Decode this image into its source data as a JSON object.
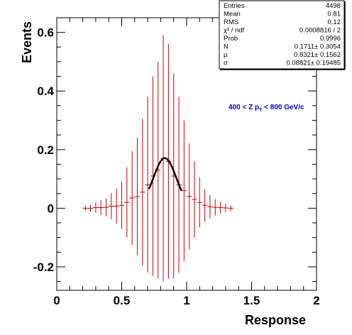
{
  "chart_data": {
    "type": "scatter",
    "xlabel": "Response",
    "ylabel": "Events",
    "xlim": [
      0,
      2
    ],
    "ylim": [
      -0.28,
      0.65
    ],
    "xticks": [
      0,
      0.5,
      1,
      1.5,
      2
    ],
    "xtick_labels": [
      "0",
      "0.5",
      "1",
      "1.5",
      "2"
    ],
    "yticks": [
      -0.2,
      0,
      0.2,
      0.4,
      0.6
    ],
    "ytick_labels": [
      "-0.2",
      "0",
      "0.2",
      "0.4",
      "0.6"
    ],
    "annotation": {
      "prefix": "400 < Z p",
      "sub": "T",
      "suffix": " < 800 GeV/c"
    },
    "histogram": {
      "color": "#cc0000",
      "bin_width": 0.04,
      "points": [
        {
          "x": 0.22,
          "y": 0.0,
          "err": 0.008
        },
        {
          "x": 0.26,
          "y": 0.0,
          "err": 0.012
        },
        {
          "x": 0.3,
          "y": 0.002,
          "err": 0.018
        },
        {
          "x": 0.34,
          "y": 0.002,
          "err": 0.025
        },
        {
          "x": 0.38,
          "y": 0.003,
          "err": 0.03
        },
        {
          "x": 0.42,
          "y": 0.007,
          "err": 0.045
        },
        {
          "x": 0.46,
          "y": 0.007,
          "err": 0.06
        },
        {
          "x": 0.5,
          "y": 0.01,
          "err": 0.08
        },
        {
          "x": 0.54,
          "y": 0.02,
          "err": 0.12
        },
        {
          "x": 0.58,
          "y": 0.035,
          "err": 0.16
        },
        {
          "x": 0.62,
          "y": 0.04,
          "err": 0.2
        },
        {
          "x": 0.66,
          "y": 0.055,
          "err": 0.25
        },
        {
          "x": 0.7,
          "y": 0.08,
          "err": 0.3
        },
        {
          "x": 0.74,
          "y": 0.11,
          "err": 0.34
        },
        {
          "x": 0.78,
          "y": 0.13,
          "err": 0.37
        },
        {
          "x": 0.82,
          "y": 0.17,
          "err": 0.42
        },
        {
          "x": 0.86,
          "y": 0.16,
          "err": 0.4
        },
        {
          "x": 0.9,
          "y": 0.11,
          "err": 0.35
        },
        {
          "x": 0.94,
          "y": 0.08,
          "err": 0.3
        },
        {
          "x": 0.98,
          "y": 0.06,
          "err": 0.24
        },
        {
          "x": 1.02,
          "y": 0.04,
          "err": 0.18
        },
        {
          "x": 1.06,
          "y": 0.03,
          "err": 0.13
        },
        {
          "x": 1.1,
          "y": 0.02,
          "err": 0.085
        },
        {
          "x": 1.14,
          "y": 0.01,
          "err": 0.055
        },
        {
          "x": 1.18,
          "y": 0.005,
          "err": 0.04
        },
        {
          "x": 1.22,
          "y": 0.003,
          "err": 0.028
        },
        {
          "x": 1.26,
          "y": 0.002,
          "err": 0.02
        },
        {
          "x": 1.3,
          "y": 0.001,
          "err": 0.015
        },
        {
          "x": 1.34,
          "y": 0.0,
          "err": 0.01
        }
      ]
    },
    "fit": {
      "type": "gaussian",
      "color": "#000000",
      "x_range": [
        0.71,
        0.96
      ],
      "N": 0.1711,
      "mu": 0.8321,
      "sigma": 0.08821
    },
    "stats": {
      "rows": [
        {
          "label": "Entries",
          "value": "4498"
        },
        {
          "label": "Mean",
          "value": "0.81"
        },
        {
          "label": "RMS",
          "value": "0.12"
        },
        {
          "label": "χ² / ndf",
          "value": "0.0008816 / 2"
        },
        {
          "label": "Prob",
          "value": "0.9996"
        },
        {
          "label": "N",
          "value": "0.1711± 0.3054"
        },
        {
          "label": "μ",
          "value": "0.8321± 0.1562"
        },
        {
          "label": "σ",
          "value": "0.08821± 0.19485"
        }
      ]
    }
  }
}
